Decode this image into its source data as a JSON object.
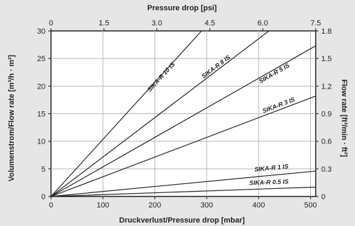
{
  "chart_data": {
    "type": "line",
    "title": "",
    "top_axis": {
      "label": "Pressure drop [psi]",
      "ticks": [
        0,
        1.5,
        3.0,
        4.5,
        6.0,
        7.5
      ],
      "tick_labels": [
        "0",
        "1.5",
        "3.0",
        "4.5",
        "6.0",
        "7.5"
      ],
      "range": [
        0,
        7.5
      ]
    },
    "xlabel": "Druckverlust/Pressure drop [mbar]",
    "xlim": [
      0,
      510
    ],
    "xticks": [
      0,
      100,
      200,
      300,
      400,
      500
    ],
    "xtick_labels": [
      "0",
      "100",
      "200",
      "300",
      "400",
      "500"
    ],
    "ylabel": "Volumenstrom/Flow rate [m³/h · m²]",
    "ylim": [
      0,
      30
    ],
    "yticks": [
      0,
      5,
      10,
      15,
      20,
      25,
      30
    ],
    "ytick_labels": [
      "0",
      "5",
      "10",
      "15",
      "20",
      "25",
      "30"
    ],
    "right_axis": {
      "label": "Flow rate [ft³/min · ft²]",
      "range": [
        0,
        1.8
      ],
      "ticks": [
        0,
        0.3,
        0.6,
        0.9,
        1.2,
        1.5,
        1.8
      ],
      "tick_labels": [
        "0",
        "0.3",
        "0.6",
        "0.9",
        "1.2",
        "1.5",
        "1.8"
      ]
    },
    "grid": true,
    "series": [
      {
        "name": "SIKA-R 10 IS",
        "x": [
          0,
          290
        ],
        "y": [
          0,
          30
        ]
      },
      {
        "name": "SIKA-R 8 IS",
        "x": [
          0,
          420
        ],
        "y": [
          0,
          30
        ]
      },
      {
        "name": "SIKA-R 5 IS",
        "x": [
          0,
          510
        ],
        "y": [
          0,
          27.3
        ]
      },
      {
        "name": "SIKA-R 3 IS",
        "x": [
          0,
          510
        ],
        "y": [
          0,
          18.2
        ]
      },
      {
        "name": "SIKA-R 1 IS",
        "x": [
          0,
          510
        ],
        "y": [
          0,
          4.6
        ]
      },
      {
        "name": "SIKA-R 0.5 IS",
        "x": [
          0,
          510
        ],
        "y": [
          0,
          1.7
        ]
      }
    ],
    "series_label_positions": [
      {
        "x": 215,
        "y": 21.4
      },
      {
        "x": 320,
        "y": 23.2
      },
      {
        "x": 432,
        "y": 22.0
      },
      {
        "x": 440,
        "y": 16.2
      },
      {
        "x": 425,
        "y": 4.8
      },
      {
        "x": 420,
        "y": 2.2
      }
    ]
  }
}
